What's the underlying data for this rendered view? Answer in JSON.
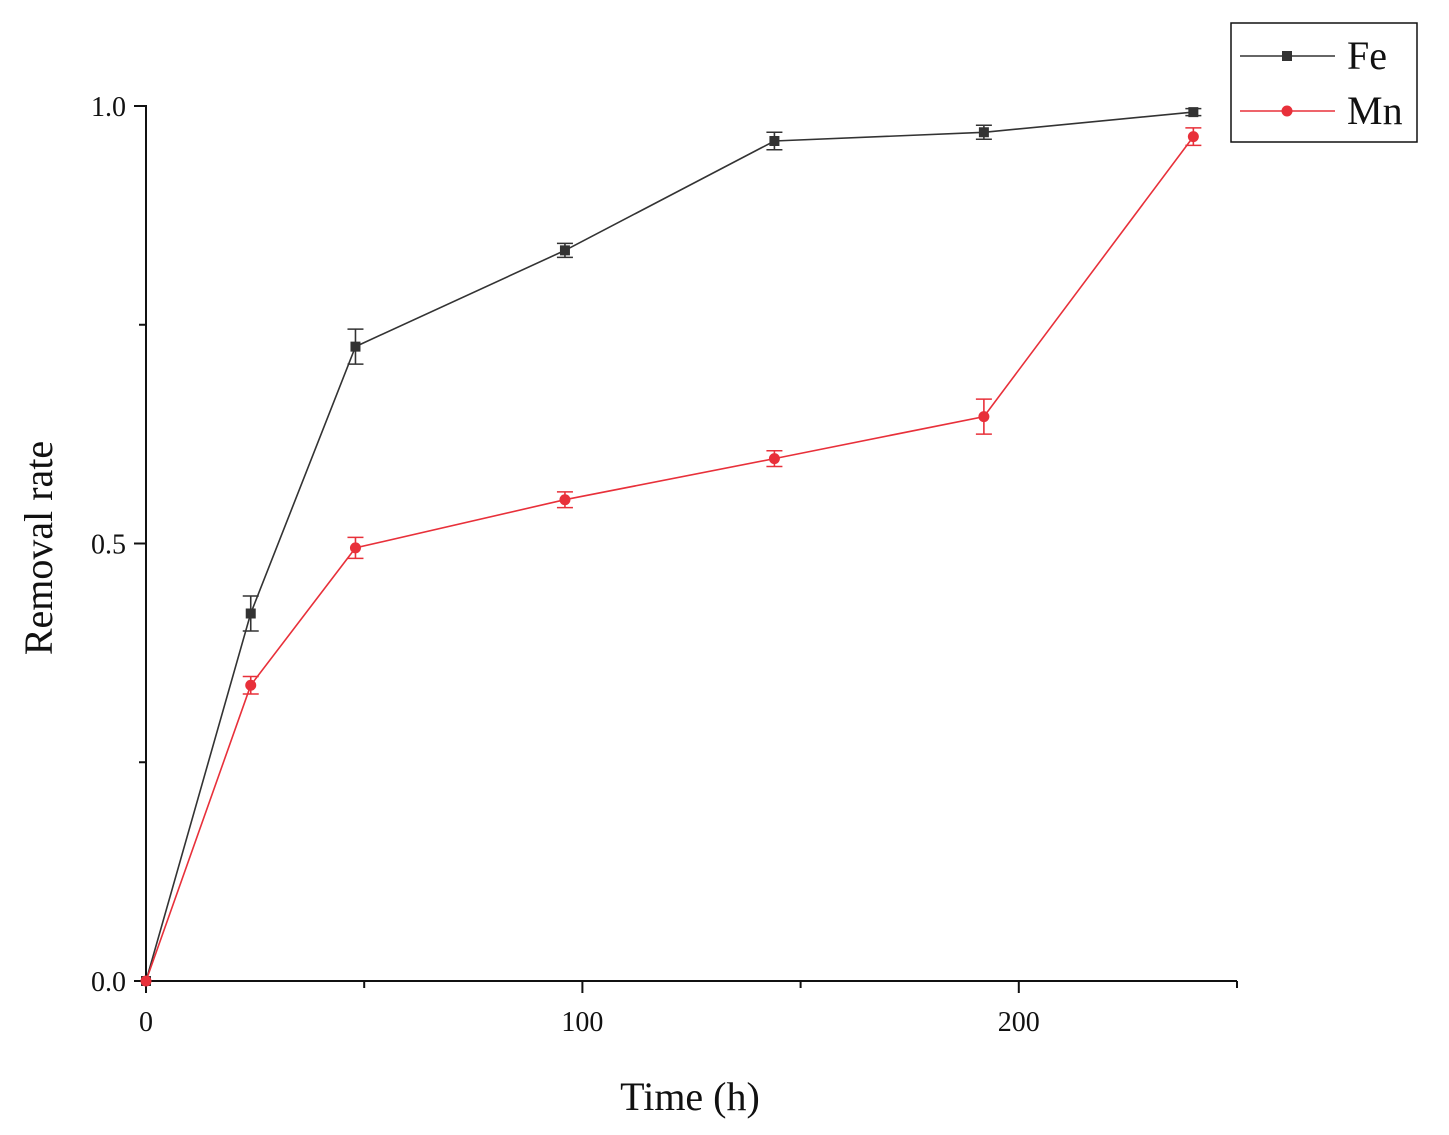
{
  "chart_data": {
    "type": "line",
    "xlabel": "Time (h)",
    "ylabel": "Removal rate",
    "xlim": [
      0,
      250
    ],
    "ylim": [
      0,
      1.0
    ],
    "x_ticks": [
      0,
      100,
      200
    ],
    "x_tick_labels": [
      "0",
      "100",
      "200"
    ],
    "x_minor_ticks": [
      50,
      150,
      250
    ],
    "y_ticks": [
      0.0,
      0.5,
      1.0
    ],
    "y_tick_labels": [
      "0.0",
      "0.5",
      "1.0"
    ],
    "y_minor_ticks": [
      0.25,
      0.75
    ],
    "grid": false,
    "legend_position": "top-right",
    "series": [
      {
        "name": "Fe",
        "marker": "square",
        "color": "#333333",
        "x": [
          0,
          24,
          48,
          96,
          144,
          192,
          240
        ],
        "y": [
          0.0,
          0.42,
          0.725,
          0.835,
          0.96,
          0.97,
          0.993
        ],
        "error": [
          0.0,
          0.02,
          0.02,
          0.008,
          0.01,
          0.008,
          0.004
        ]
      },
      {
        "name": "Mn",
        "marker": "circle",
        "color": "#e8303a",
        "x": [
          0,
          24,
          48,
          96,
          144,
          192,
          240
        ],
        "y": [
          0.0,
          0.338,
          0.495,
          0.55,
          0.597,
          0.645,
          0.965
        ],
        "error": [
          0.0,
          0.01,
          0.012,
          0.009,
          0.009,
          0.02,
          0.01
        ]
      }
    ]
  }
}
